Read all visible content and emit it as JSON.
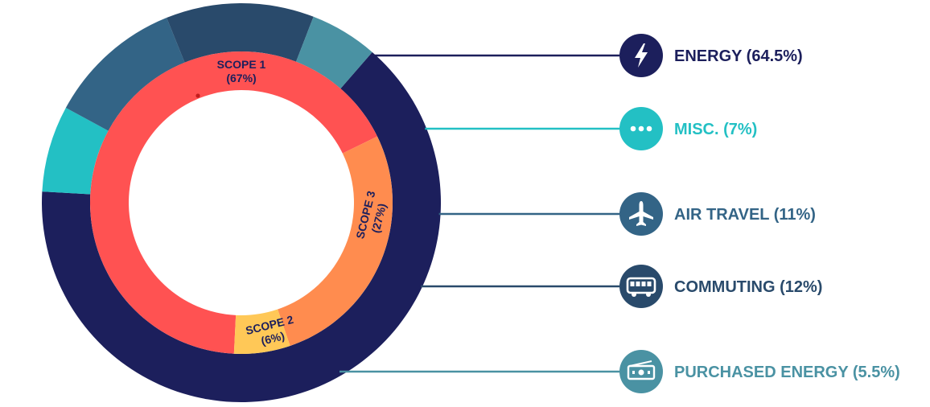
{
  "chart_data": {
    "type": "pie",
    "style": "nested donut",
    "inner_ring": {
      "slices": [
        {
          "label": "SCOPE 1",
          "value_label": "(67%)",
          "value": 67,
          "color": "#ff5252"
        },
        {
          "label": "SCOPE 3",
          "value_label": "(27%)",
          "value": 27,
          "color": "#ff8c4f"
        },
        {
          "label": "SCOPE 2",
          "value_label": "(6%)",
          "value": 6,
          "color": "#ffc857"
        }
      ]
    },
    "outer_ring": {
      "slices": [
        {
          "label": "ENERGY (64.5%)",
          "name": "ENERGY",
          "value": 64.5,
          "color": "#1c1f5c",
          "label_color": "#1c1f5c",
          "icon": "lightning-icon"
        },
        {
          "label": "MISC. (7%)",
          "name": "MISC.",
          "value": 7,
          "color": "#23c0c4",
          "label_color": "#23c0c4",
          "icon": "ellipsis-icon"
        },
        {
          "label": "AIR TRAVEL (11%)",
          "name": "AIR TRAVEL",
          "value": 11,
          "color": "#336486",
          "label_color": "#336486",
          "icon": "airplane-icon"
        },
        {
          "label": "COMMUTING (12%)",
          "name": "COMMUTING",
          "value": 12,
          "color": "#294a6b",
          "label_color": "#294a6b",
          "icon": "bus-icon"
        },
        {
          "label": "PURCHASED ENERGY (5.5%)",
          "name": "PURCHASED ENERGY",
          "value": 5.5,
          "color": "#4a92a3",
          "label_color": "#4a92a3",
          "icon": "money-icon"
        }
      ]
    },
    "legend_placement": "right"
  }
}
